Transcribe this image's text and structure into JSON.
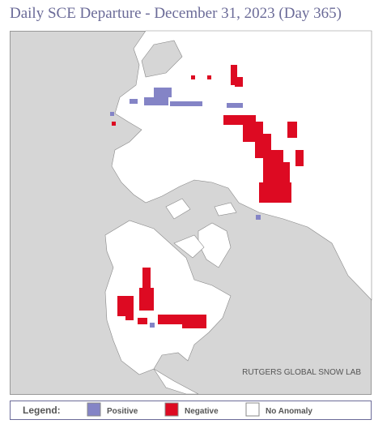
{
  "title": "Daily SCE Departure - December 31, 2023 (Day 365)",
  "watermark": "RUTGERS GLOBAL SNOW LAB",
  "legend": {
    "title": "Legend:",
    "items": [
      {
        "label": "Positive",
        "color": "#8484c6"
      },
      {
        "label": "Negative",
        "color": "#dd0a22"
      },
      {
        "label": "No Anomaly",
        "color": "#ffffff"
      }
    ]
  }
}
